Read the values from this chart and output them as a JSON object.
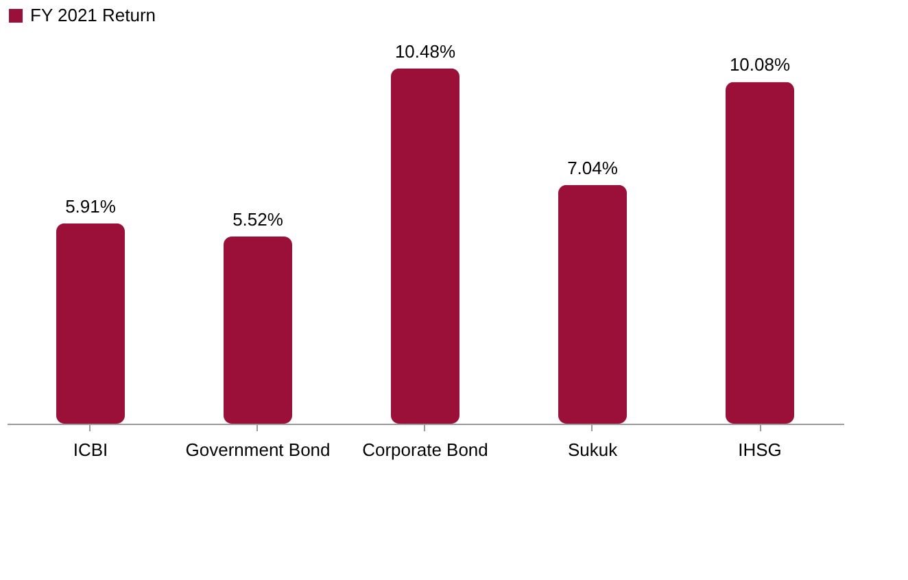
{
  "chart_data": {
    "type": "bar",
    "categories": [
      "ICBI",
      "Government Bond",
      "Corporate Bond",
      "Sukuk",
      "IHSG"
    ],
    "series": [
      {
        "name": "FY 2021 Return",
        "color": "#9b1038",
        "values": [
          5.91,
          5.52,
          10.48,
          7.04,
          10.08
        ],
        "value_labels": [
          "5.91%",
          "5.52%",
          "10.48%",
          "7.04%",
          "10.08%"
        ]
      }
    ],
    "legend": "top",
    "grid": false
  }
}
